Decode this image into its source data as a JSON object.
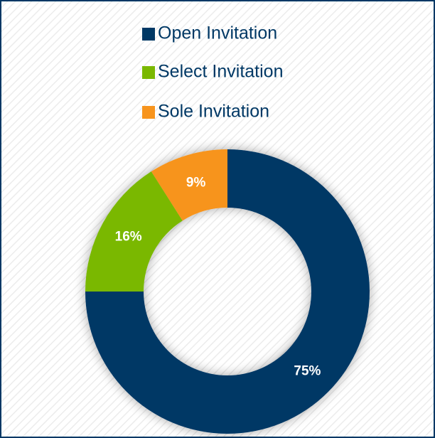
{
  "chart_data": {
    "type": "donut",
    "categories": [
      "Open Invitation",
      "Select Invitation",
      "Sole Invitation"
    ],
    "values": [
      75,
      16,
      9
    ],
    "value_labels": [
      "75%",
      "16%",
      "9%"
    ],
    "colors": [
      "#003865",
      "#7ab800",
      "#f7941d"
    ]
  }
}
